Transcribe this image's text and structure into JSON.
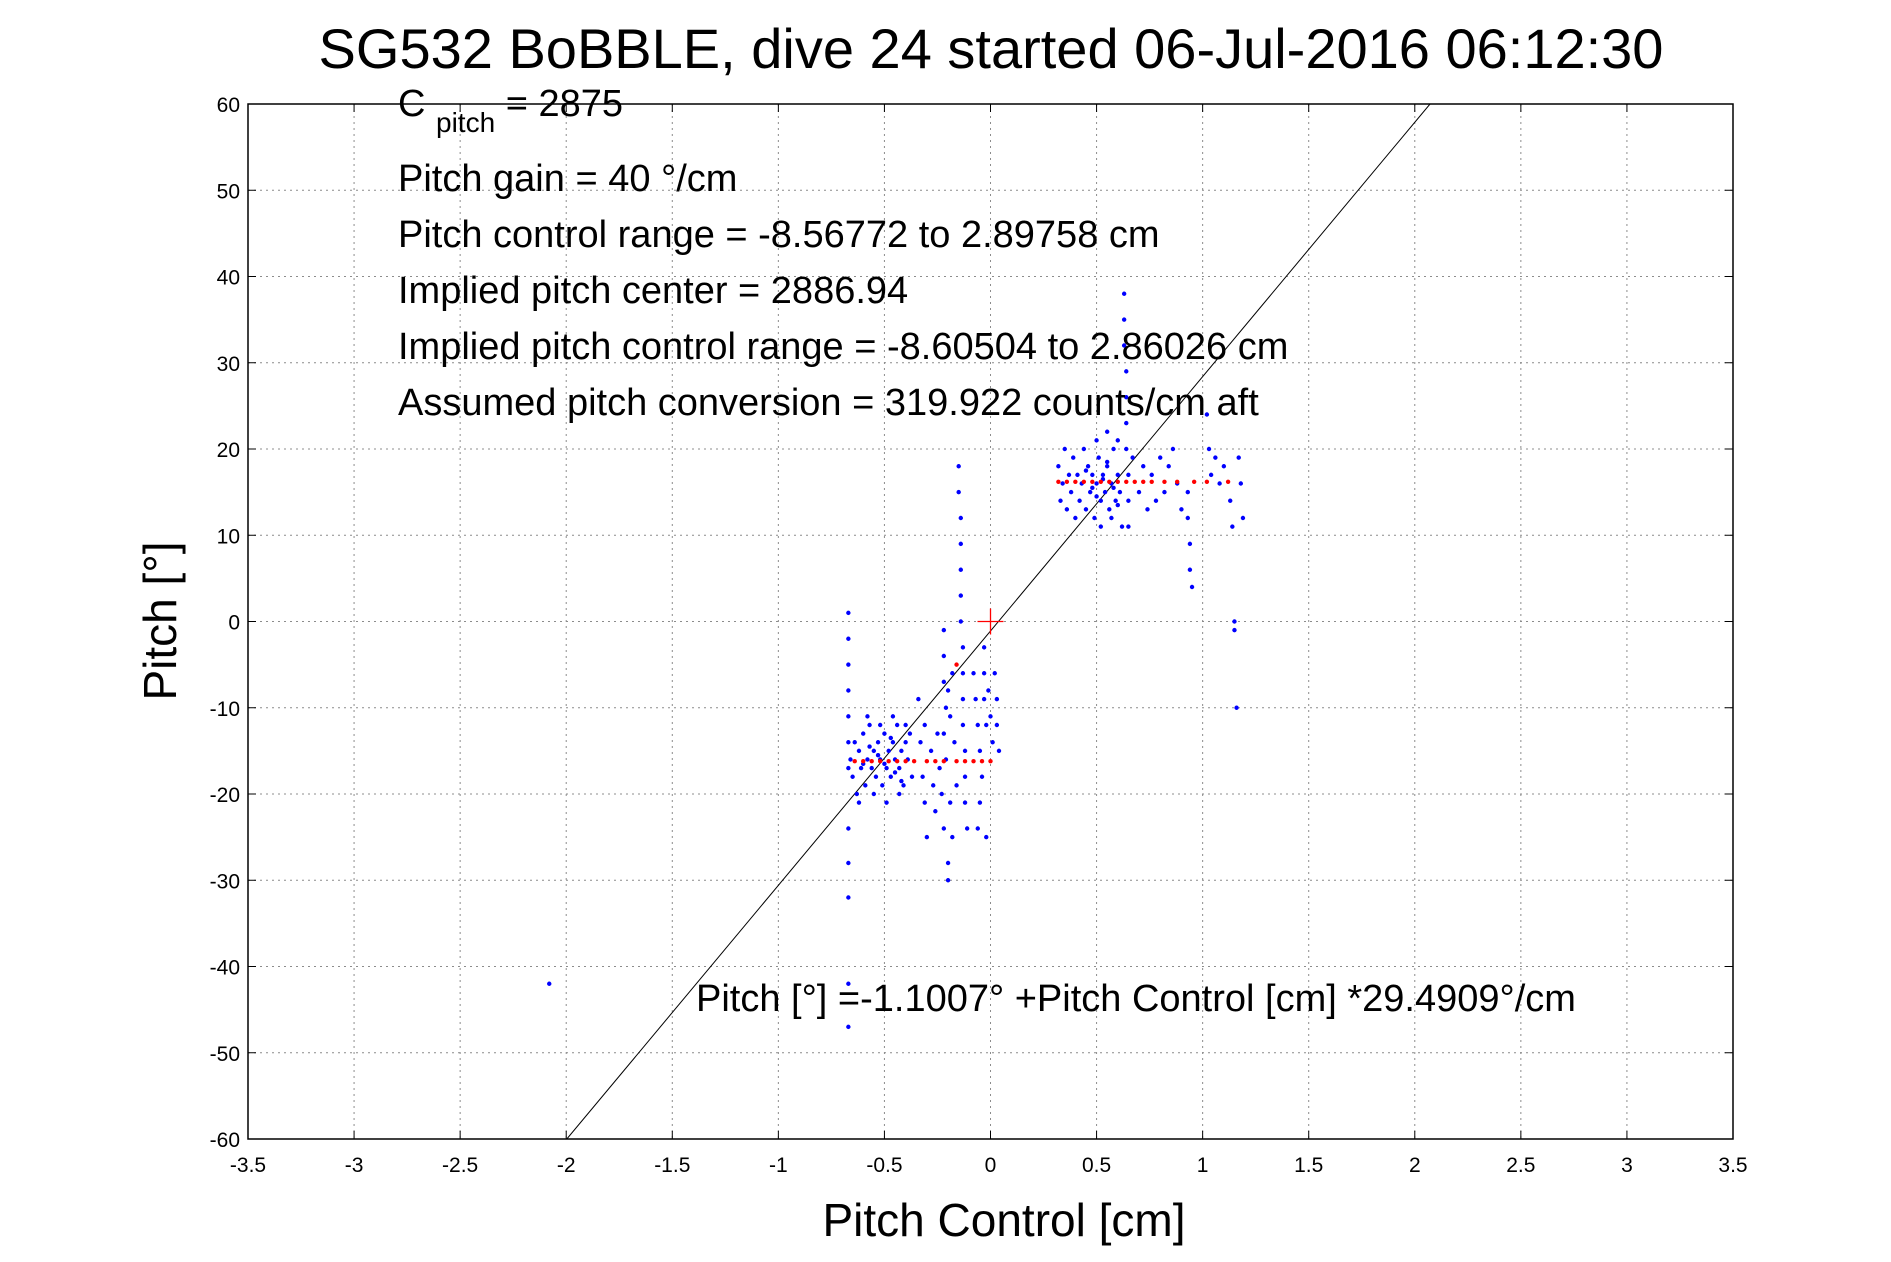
{
  "chart_data": {
    "type": "scatter",
    "title": "SG532 BoBBLE, dive 24 started 06-Jul-2016 06:12:30",
    "xlabel": "Pitch Control [cm]",
    "ylabel": "Pitch [°]",
    "xlim": [
      -3.5,
      3.5
    ],
    "ylim": [
      -60,
      60
    ],
    "xticks": [
      "-3.5",
      "-3",
      "-2.5",
      "-2",
      "-1.5",
      "-1",
      "-0.5",
      "0",
      "0.5",
      "1",
      "1.5",
      "2",
      "2.5",
      "3",
      "3.5"
    ],
    "yticks": [
      "60",
      "50",
      "40",
      "30",
      "20",
      "10",
      "0",
      "-10",
      "-20",
      "-30",
      "-40",
      "-50",
      "-60"
    ],
    "grid": true,
    "annotations": {
      "cpitch_main": "C",
      "cpitch_sub": "pitch",
      "cpitch_value": " = 2875",
      "line2": "Pitch gain = 40 °/cm",
      "line3": "Pitch control range = -8.56772 to 2.89758 cm",
      "line4": "Implied pitch center = 2886.94",
      "line5": "Implied pitch control range = -8.60504 to 2.86026 cm",
      "line6": "Assumed pitch conversion = 319.922 counts/cm aft",
      "fit_text": "Pitch [°] =-1.1007° +Pitch Control [cm] *29.4909°/cm"
    },
    "fit_line": {
      "intercept": -1.1007,
      "slope": 29.4909
    },
    "center_marker": [
      0,
      0
    ],
    "colors": {
      "data": "#0000ff",
      "red": "#ff0000",
      "fit": "#000000"
    },
    "series": [
      {
        "points": [
          [
            -0.66,
            -16
          ],
          [
            -0.65,
            -18
          ],
          [
            -0.64,
            -14
          ],
          [
            -0.63,
            -20
          ],
          [
            -0.62,
            -15
          ],
          [
            -0.61,
            -17
          ],
          [
            -0.6,
            -13
          ],
          [
            -0.59,
            -19
          ],
          [
            -0.58,
            -16
          ],
          [
            -0.57,
            -12
          ],
          [
            -0.56,
            -17
          ],
          [
            -0.55,
            -15
          ],
          [
            -0.54,
            -18
          ],
          [
            -0.53,
            -14
          ],
          [
            -0.52,
            -16
          ],
          [
            -0.51,
            -19
          ],
          [
            -0.5,
            -13
          ],
          [
            -0.49,
            -17
          ],
          [
            -0.48,
            -15
          ],
          [
            -0.47,
            -18
          ],
          [
            -0.46,
            -14
          ],
          [
            -0.45,
            -16
          ],
          [
            -0.44,
            -12
          ],
          [
            -0.43,
            -17
          ],
          [
            -0.42,
            -15
          ],
          [
            -0.41,
            -19
          ],
          [
            -0.4,
            -14
          ],
          [
            -0.39,
            -16
          ],
          [
            -0.38,
            -13
          ],
          [
            -0.37,
            -18
          ],
          [
            -0.62,
            -21
          ],
          [
            -0.58,
            -11
          ],
          [
            -0.55,
            -20
          ],
          [
            -0.52,
            -12
          ],
          [
            -0.49,
            -21
          ],
          [
            -0.46,
            -11
          ],
          [
            -0.43,
            -20
          ],
          [
            -0.4,
            -12
          ],
          [
            -0.6,
            -16.5
          ],
          [
            -0.5,
            -16.5
          ],
          [
            -0.45,
            -17.5
          ],
          [
            -0.57,
            -14.5
          ],
          [
            -0.53,
            -15.5
          ],
          [
            -0.47,
            -13.5
          ],
          [
            -0.42,
            -18.5
          ],
          [
            -0.67,
            1
          ],
          [
            -0.67,
            -2
          ],
          [
            -0.67,
            -5
          ],
          [
            -0.67,
            -8
          ],
          [
            -0.67,
            -11
          ],
          [
            -0.67,
            -14
          ],
          [
            -0.67,
            -17
          ],
          [
            -0.67,
            -24
          ],
          [
            -0.67,
            -28
          ],
          [
            -0.67,
            -32
          ],
          [
            -0.67,
            -42
          ],
          [
            -0.67,
            -47
          ],
          [
            -0.34,
            -9
          ],
          [
            -0.33,
            -14
          ],
          [
            -0.32,
            -18
          ],
          [
            -0.31,
            -21
          ],
          [
            -0.3,
            -25
          ],
          [
            -0.31,
            -12
          ],
          [
            -0.28,
            -15
          ],
          [
            -0.27,
            -19
          ],
          [
            -0.26,
            -22
          ],
          [
            -0.25,
            -13
          ],
          [
            -0.24,
            -17
          ],
          [
            -0.23,
            -20
          ],
          [
            -0.22,
            -24
          ],
          [
            -0.21,
            -16
          ],
          [
            -0.2,
            -28
          ],
          [
            -0.2,
            -30
          ],
          [
            -0.19,
            -21
          ],
          [
            -0.18,
            -25
          ],
          [
            -0.17,
            -14
          ],
          [
            -0.16,
            -19
          ],
          [
            -0.22,
            -1
          ],
          [
            -0.22,
            -4
          ],
          [
            -0.22,
            -7
          ],
          [
            -0.21,
            -10
          ],
          [
            -0.22,
            -13
          ],
          [
            -0.2,
            -8
          ],
          [
            -0.19,
            -11
          ],
          [
            -0.18,
            -6
          ],
          [
            -0.15,
            18
          ],
          [
            -0.15,
            15
          ],
          [
            -0.14,
            12
          ],
          [
            -0.14,
            9
          ],
          [
            -0.14,
            6
          ],
          [
            -0.14,
            3
          ],
          [
            -0.14,
            0
          ],
          [
            -0.13,
            -3
          ],
          [
            -0.13,
            -6
          ],
          [
            -0.13,
            -9
          ],
          [
            -0.13,
            -12
          ],
          [
            -0.12,
            -15
          ],
          [
            -0.12,
            -18
          ],
          [
            -0.12,
            -21
          ],
          [
            -0.11,
            -24
          ],
          [
            -0.08,
            -6
          ],
          [
            -0.07,
            -9
          ],
          [
            -0.06,
            -12
          ],
          [
            -0.05,
            -15
          ],
          [
            -0.04,
            -18
          ],
          [
            -0.05,
            -21
          ],
          [
            -0.06,
            -24
          ],
          [
            -0.03,
            -3
          ],
          [
            -0.03,
            -6
          ],
          [
            -0.03,
            -9
          ],
          [
            -0.02,
            -12
          ],
          [
            -0.02,
            -25
          ],
          [
            -0.01,
            -8
          ],
          [
            0.0,
            -11
          ],
          [
            0.01,
            -14
          ],
          [
            0.02,
            -6
          ],
          [
            0.03,
            -9
          ],
          [
            0.03,
            -12
          ],
          [
            0.04,
            -15
          ],
          [
            0.32,
            18
          ],
          [
            0.33,
            14
          ],
          [
            0.34,
            16
          ],
          [
            0.35,
            20
          ],
          [
            0.36,
            13
          ],
          [
            0.37,
            17
          ],
          [
            0.38,
            15
          ],
          [
            0.39,
            19
          ],
          [
            0.4,
            12
          ],
          [
            0.41,
            17
          ],
          [
            0.42,
            14
          ],
          [
            0.43,
            16
          ],
          [
            0.44,
            20
          ],
          [
            0.45,
            13
          ],
          [
            0.46,
            18
          ],
          [
            0.47,
            15
          ],
          [
            0.48,
            17
          ],
          [
            0.49,
            12
          ],
          [
            0.5,
            16
          ],
          [
            0.51,
            19
          ],
          [
            0.52,
            14
          ],
          [
            0.53,
            17
          ],
          [
            0.54,
            15
          ],
          [
            0.55,
            18
          ],
          [
            0.56,
            13
          ],
          [
            0.57,
            16
          ],
          [
            0.58,
            20
          ],
          [
            0.59,
            14
          ],
          [
            0.6,
            17
          ],
          [
            0.61,
            15
          ],
          [
            0.5,
            21
          ],
          [
            0.52,
            11
          ],
          [
            0.55,
            22
          ],
          [
            0.57,
            12
          ],
          [
            0.6,
            21
          ],
          [
            0.62,
            11
          ],
          [
            0.48,
            15.5
          ],
          [
            0.53,
            16.5
          ],
          [
            0.58,
            15.5
          ],
          [
            0.45,
            17.5
          ],
          [
            0.5,
            14.5
          ],
          [
            0.55,
            18.5
          ],
          [
            0.6,
            13.5
          ],
          [
            0.63,
            38
          ],
          [
            0.63,
            35
          ],
          [
            0.63,
            32
          ],
          [
            0.64,
            29
          ],
          [
            0.64,
            26
          ],
          [
            0.64,
            23
          ],
          [
            0.64,
            20
          ],
          [
            0.65,
            17
          ],
          [
            0.65,
            14
          ],
          [
            0.65,
            11
          ],
          [
            0.67,
            19
          ],
          [
            0.7,
            15
          ],
          [
            0.72,
            18
          ],
          [
            0.74,
            13
          ],
          [
            0.76,
            17
          ],
          [
            0.78,
            14
          ],
          [
            0.8,
            19
          ],
          [
            0.82,
            15
          ],
          [
            0.84,
            18
          ],
          [
            0.86,
            20
          ],
          [
            0.88,
            16
          ],
          [
            0.9,
            13
          ],
          [
            0.93,
            15
          ],
          [
            0.93,
            12
          ],
          [
            0.94,
            9
          ],
          [
            0.94,
            6
          ],
          [
            0.95,
            4
          ],
          [
            1.02,
            24
          ],
          [
            1.03,
            20
          ],
          [
            1.04,
            17
          ],
          [
            1.06,
            19
          ],
          [
            1.08,
            16
          ],
          [
            1.1,
            18
          ],
          [
            1.13,
            14
          ],
          [
            1.14,
            11
          ],
          [
            1.15,
            0
          ],
          [
            1.15,
            -1
          ],
          [
            1.16,
            -10
          ],
          [
            1.17,
            19
          ],
          [
            1.18,
            16
          ],
          [
            1.19,
            12
          ],
          [
            -2.08,
            -42
          ]
        ]
      },
      {
        "name": "",
        "points": [
          [
            -0.64,
            -16.2
          ],
          [
            -0.6,
            -16.2
          ],
          [
            -0.56,
            -16.2
          ],
          [
            -0.52,
            -16.2
          ],
          [
            -0.48,
            -16.2
          ],
          [
            -0.44,
            -16.2
          ],
          [
            -0.4,
            -16.2
          ],
          [
            -0.36,
            -16.2
          ],
          [
            -0.3,
            -16.2
          ],
          [
            -0.26,
            -16.2
          ],
          [
            -0.22,
            -16.2
          ],
          [
            -0.16,
            -16.2
          ],
          [
            -0.12,
            -16.2
          ],
          [
            -0.08,
            -16.2
          ],
          [
            -0.04,
            -16.2
          ],
          [
            0.0,
            -16.2
          ],
          [
            -0.16,
            -5
          ],
          [
            0.32,
            16.2
          ],
          [
            0.36,
            16.2
          ],
          [
            0.4,
            16.2
          ],
          [
            0.44,
            16.2
          ],
          [
            0.48,
            16.2
          ],
          [
            0.52,
            16.2
          ],
          [
            0.56,
            16.2
          ],
          [
            0.6,
            16.2
          ],
          [
            0.64,
            16.2
          ],
          [
            0.68,
            16.2
          ],
          [
            0.72,
            16.2
          ],
          [
            0.76,
            16.2
          ],
          [
            0.82,
            16.2
          ],
          [
            0.88,
            16.2
          ],
          [
            0.96,
            16.2
          ],
          [
            1.02,
            16.2
          ],
          [
            1.12,
            16.2
          ]
        ]
      }
    ]
  }
}
